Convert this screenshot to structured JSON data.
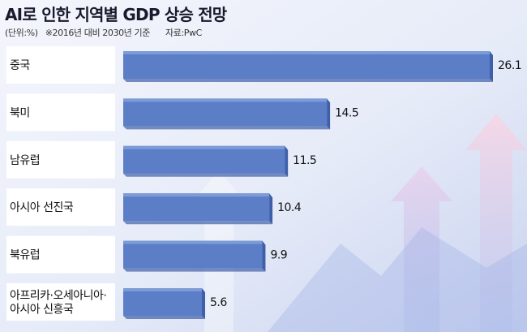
{
  "header": {
    "title": "AI로 인한 지역별 GDP 상승 전망",
    "unit": "(단위:%)",
    "base_note": "※2016년 대비 2030년 기준",
    "source": "자료:PwC"
  },
  "colors": {
    "bar": "#5b7ec7",
    "bar_dark": "#3f5fa8",
    "bar_light": "#7d9bd6",
    "label_box": "#ffffff",
    "background": "#eef2fb"
  },
  "chart_data": {
    "type": "bar",
    "orientation": "horizontal",
    "title": "AI로 인한 지역별 GDP 상승 전망",
    "xlabel": "",
    "ylabel": "",
    "unit": "%",
    "grid": false,
    "legend": "none",
    "xlim": [
      0,
      27
    ],
    "categories": [
      [
        "중국"
      ],
      [
        "북미"
      ],
      [
        "남유럽"
      ],
      [
        "아시아 선진국"
      ],
      [
        "북유럽"
      ],
      [
        "아프리카·오세아니아·",
        "아시아 신흥국"
      ]
    ],
    "values": [
      26.1,
      14.5,
      11.5,
      10.4,
      9.9,
      5.6
    ],
    "value_labels": [
      "26.1",
      "14.5",
      "11.5",
      "10.4",
      "9.9",
      "5.6"
    ]
  }
}
